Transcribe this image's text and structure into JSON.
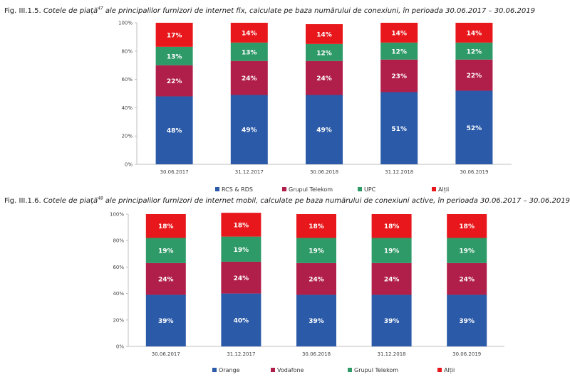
{
  "figures": [
    {
      "caption_number": "Fig. III.1.5.",
      "caption_italic": "Cotele de piață",
      "caption_sup": "47",
      "caption_rest": " ale principalilor furnizori de internet fix, calculate pe baza numărului de conexiuni, în perioada 30.06.2017 – 30.06.2019"
    },
    {
      "caption_number": "Fig. III.1.6.",
      "caption_italic": "Cotele de piață",
      "caption_sup": "48",
      "caption_rest": " ale principalilor furnizori de internet mobil, calculate pe baza numărului de conexiuni active, în perioada 30.06.2017 – 30.06.2019"
    }
  ],
  "chart_data": [
    {
      "type": "bar",
      "stacked": true,
      "percent_axis": true,
      "categories": [
        "30.06.2017",
        "31.12.2017",
        "30.06.2018",
        "31.12.2018",
        "30.06.2019"
      ],
      "y_ticks": [
        "0%",
        "20%",
        "40%",
        "60%",
        "80%",
        "100%"
      ],
      "ylim": [
        0,
        100
      ],
      "legend_position": "bottom",
      "series": [
        {
          "name": "RCS & RDS",
          "color": "#2a5aa8",
          "values": [
            48,
            49,
            49,
            51,
            52
          ],
          "labels": [
            "48%",
            "49%",
            "49%",
            "51%",
            "52%"
          ]
        },
        {
          "name": "Grupul Telekom",
          "color": "#b01e4a",
          "values": [
            22,
            24,
            24,
            23,
            22
          ],
          "labels": [
            "22%",
            "24%",
            "24%",
            "23%",
            "22%"
          ]
        },
        {
          "name": "UPC",
          "color": "#2e9a68",
          "values": [
            13,
            13,
            12,
            12,
            12
          ],
          "labels": [
            "13%",
            "13%",
            "12%",
            "12%",
            "12%"
          ]
        },
        {
          "name": "Alții",
          "color": "#e8171b",
          "values": [
            17,
            14,
            14,
            14,
            14
          ],
          "labels": [
            "17%",
            "14%",
            "14%",
            "14%",
            "14%"
          ]
        }
      ]
    },
    {
      "type": "bar",
      "stacked": true,
      "percent_axis": true,
      "categories": [
        "30.06.2017",
        "31.12.2017",
        "30.06.2018",
        "31.12.2018",
        "30.06.2019"
      ],
      "y_ticks": [
        "0%",
        "20%",
        "40%",
        "60%",
        "80%",
        "100%"
      ],
      "ylim": [
        0,
        100
      ],
      "legend_position": "bottom",
      "series": [
        {
          "name": "Orange",
          "color": "#2a5aa8",
          "values": [
            39,
            40,
            39,
            39,
            39
          ],
          "labels": [
            "39%",
            "40%",
            "39%",
            "39%",
            "39%"
          ]
        },
        {
          "name": "Vodafone",
          "color": "#b01e4a",
          "values": [
            24,
            24,
            24,
            24,
            24
          ],
          "labels": [
            "24%",
            "24%",
            "24%",
            "24%",
            "24%"
          ]
        },
        {
          "name": "Grupul Telekom",
          "color": "#2e9a68",
          "values": [
            19,
            19,
            19,
            19,
            19
          ],
          "labels": [
            "19%",
            "19%",
            "19%",
            "19%",
            "19%"
          ]
        },
        {
          "name": "Alții",
          "color": "#e8171b",
          "values": [
            18,
            18,
            18,
            18,
            18
          ],
          "labels": [
            "18%",
            "18%",
            "18%",
            "18%",
            "18%"
          ]
        }
      ]
    }
  ]
}
